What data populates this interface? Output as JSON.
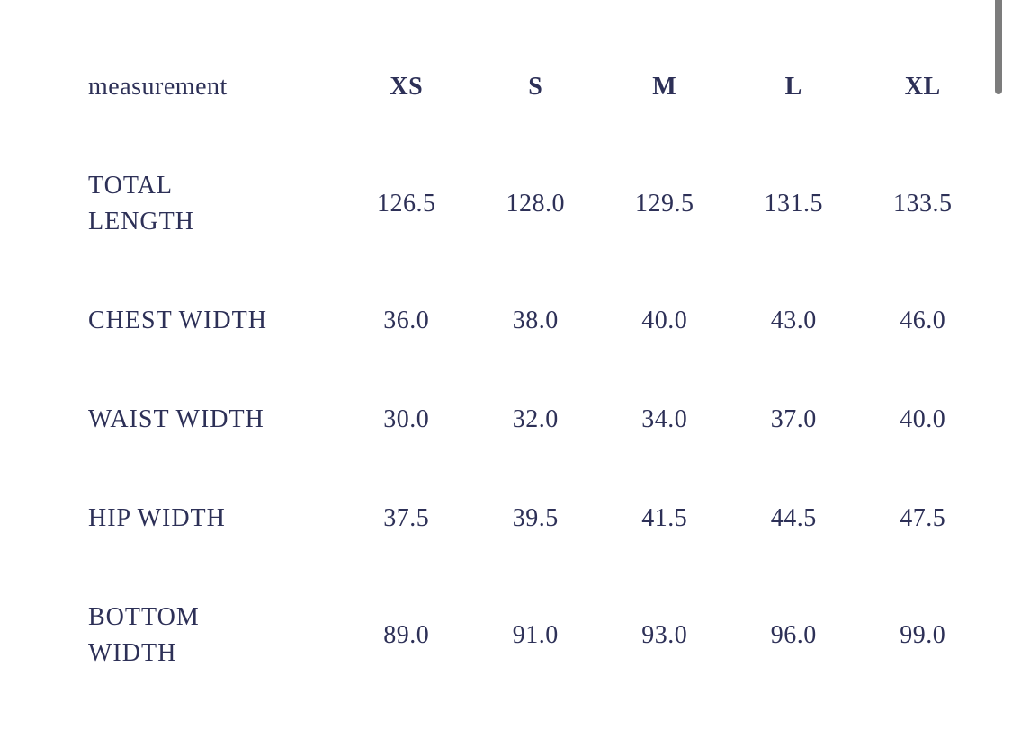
{
  "page": {
    "background_color": "#ffffff",
    "text_color": "#2d3057",
    "scrollbar_color": "#7c7c7c"
  },
  "size_table": {
    "header": {
      "label": "measurement",
      "sizes": [
        "XS",
        "S",
        "M",
        "L",
        "XL"
      ]
    },
    "rows": [
      {
        "label_lines": [
          "TOTAL",
          "LENGTH"
        ],
        "values": [
          "126.5",
          "128.0",
          "129.5",
          "131.5",
          "133.5"
        ]
      },
      {
        "label_lines": [
          "CHEST WIDTH"
        ],
        "values": [
          "36.0",
          "38.0",
          "40.0",
          "43.0",
          "46.0"
        ]
      },
      {
        "label_lines": [
          "WAIST WIDTH"
        ],
        "values": [
          "30.0",
          "32.0",
          "34.0",
          "37.0",
          "40.0"
        ]
      },
      {
        "label_lines": [
          "HIP WIDTH"
        ],
        "values": [
          "37.5",
          "39.5",
          "41.5",
          "44.5",
          "47.5"
        ]
      },
      {
        "label_lines": [
          "BOTTOM",
          "WIDTH"
        ],
        "values": [
          "89.0",
          "91.0",
          "93.0",
          "96.0",
          "99.0"
        ]
      }
    ]
  }
}
